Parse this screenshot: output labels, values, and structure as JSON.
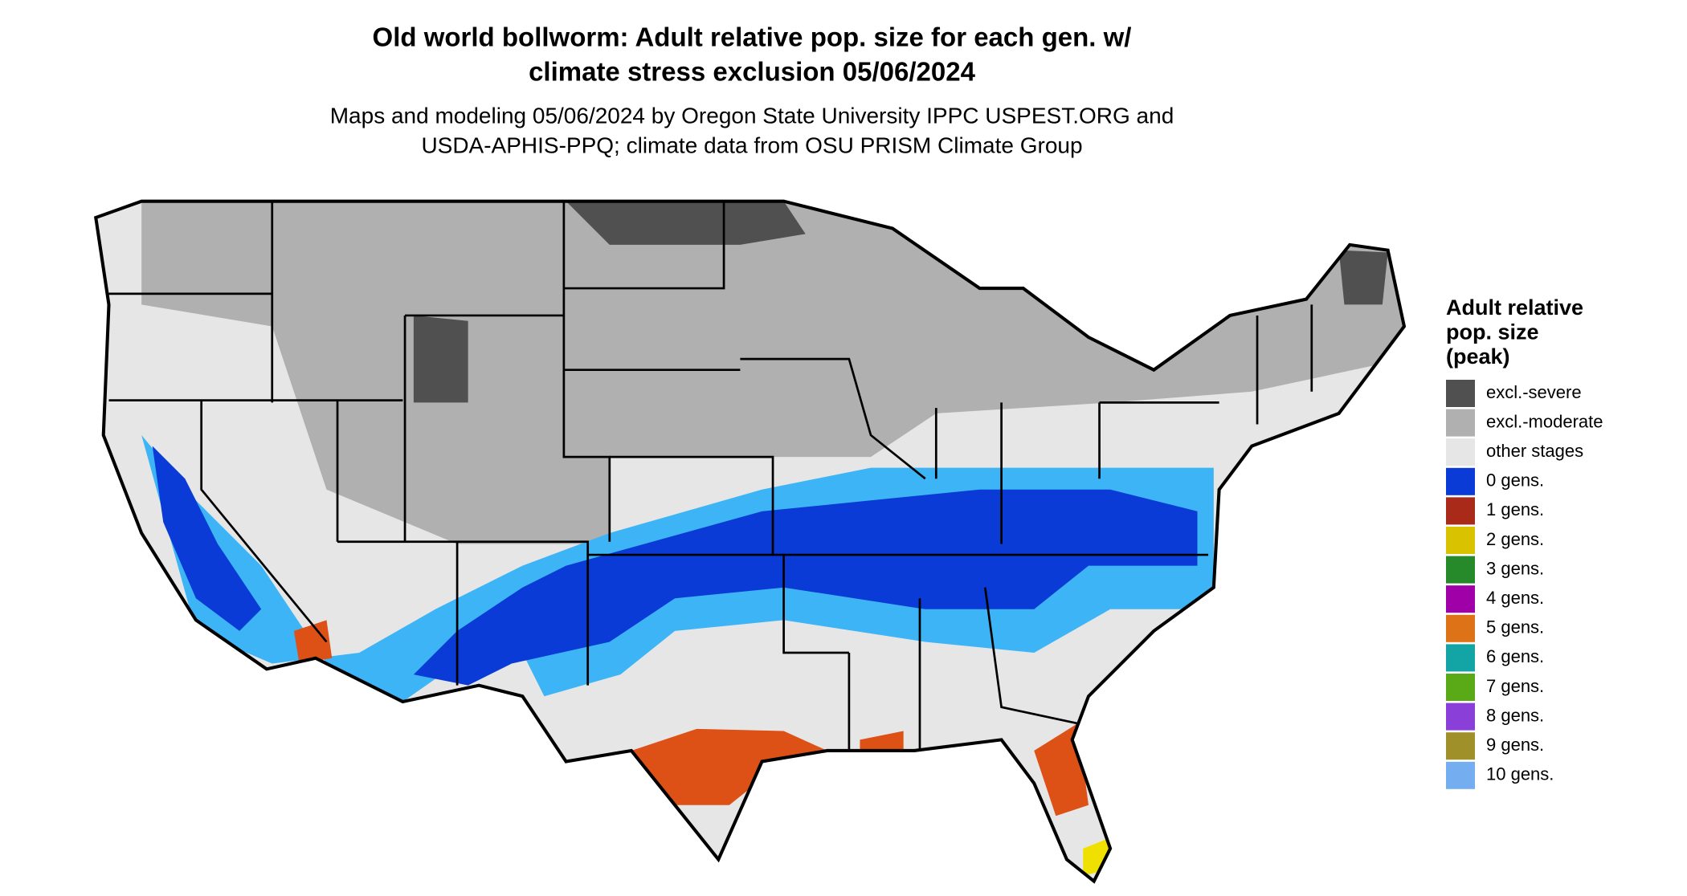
{
  "title": [
    "Old world bollworm: Adult relative pop. size for each gen. w/",
    "climate stress exclusion 05/06/2024"
  ],
  "subtitle": [
    "Maps and modeling 05/06/2024 by Oregon State University IPPC USPEST.ORG and",
    "USDA-APHIS-PPQ; climate data from OSU PRISM Climate Group"
  ],
  "legend": {
    "title": [
      "Adult relative",
      "pop. size",
      "(peak)"
    ],
    "items": [
      {
        "label": "excl.-severe",
        "color": "#505050"
      },
      {
        "label": "excl.-moderate",
        "color": "#b0b0b0"
      },
      {
        "label": "other stages",
        "color": "#e6e6e6"
      },
      {
        "label": "0 gens.",
        "color": "#0a3bd6"
      },
      {
        "label": "1 gens.",
        "color": "#aa2a1a"
      },
      {
        "label": "2 gens.",
        "color": "#d9c200"
      },
      {
        "label": "3 gens.",
        "color": "#278a2a"
      },
      {
        "label": "4 gens.",
        "color": "#a000a8"
      },
      {
        "label": "5 gens.",
        "color": "#dd7316"
      },
      {
        "label": "6 gens.",
        "color": "#13a5a5"
      },
      {
        "label": "7 gens.",
        "color": "#5aaa18"
      },
      {
        "label": "8 gens.",
        "color": "#8a40d8"
      },
      {
        "label": "9 gens.",
        "color": "#a0902a"
      },
      {
        "label": "10 gens.",
        "color": "#74aef0"
      }
    ]
  }
}
